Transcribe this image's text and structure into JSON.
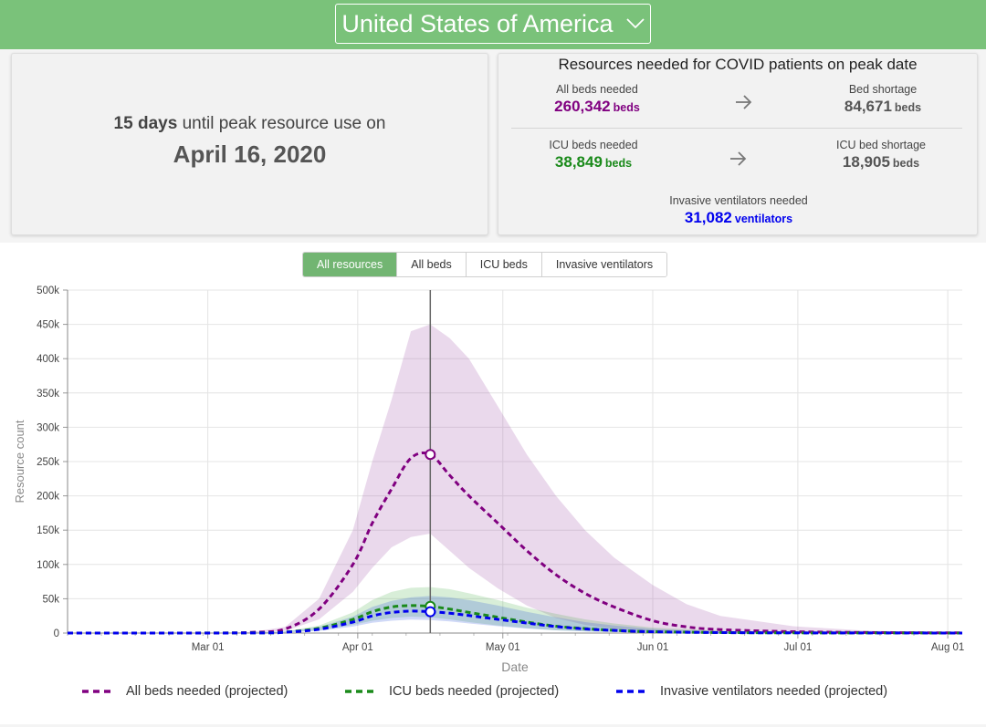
{
  "header": {
    "country": "United States of America"
  },
  "peak": {
    "days": "15 days",
    "until_text": "until peak resource use on",
    "date": "April 16, 2020"
  },
  "resources": {
    "title": "Resources needed for COVID patients on peak date",
    "all_beds": {
      "label": "All beds needed",
      "value": "260,342",
      "unit": "beds"
    },
    "bed_shortage": {
      "label": "Bed shortage",
      "value": "84,671",
      "unit": "beds"
    },
    "icu_beds": {
      "label": "ICU beds needed",
      "value": "38,849",
      "unit": "beds"
    },
    "icu_shortage": {
      "label": "ICU bed shortage",
      "value": "18,905",
      "unit": "beds"
    },
    "ventilators": {
      "label": "Invasive ventilators needed",
      "value": "31,082",
      "unit": "ventilators"
    }
  },
  "tabs": [
    "All resources",
    "All beds",
    "ICU beds",
    "Invasive ventilators"
  ],
  "colors": {
    "green": "#7ac27a",
    "purple": "#800080",
    "icu_green": "#1a8a1a",
    "blue": "#0000ee",
    "gray": "#666666"
  },
  "chart_data": {
    "type": "line",
    "xlabel": "Date",
    "ylabel": "Resource count",
    "ylim": [
      0,
      500000
    ],
    "yticks": [
      0,
      50000,
      100000,
      150000,
      200000,
      250000,
      300000,
      350000,
      400000,
      450000,
      500000
    ],
    "ytick_labels": [
      "0",
      "50k",
      "100k",
      "150k",
      "200k",
      "250k",
      "300k",
      "350k",
      "400k",
      "450k",
      "500k"
    ],
    "xlim": [
      "2020-02-01",
      "2020-08-04"
    ],
    "xticks": [
      "2020-03-01",
      "2020-04-01",
      "2020-05-01",
      "2020-06-01",
      "2020-07-01",
      "2020-08-01"
    ],
    "xtick_labels": [
      "Mar 01",
      "Apr 01",
      "May 01",
      "Jun 01",
      "Jul 01",
      "Aug 01"
    ],
    "peak_date": "2020-04-16",
    "grid": true,
    "legend_position": "bottom",
    "series": [
      {
        "name": "All beds needed (projected)",
        "color": "#800080",
        "x": [
          "2020-02-01",
          "2020-03-01",
          "2020-03-10",
          "2020-03-17",
          "2020-03-24",
          "2020-03-31",
          "2020-04-04",
          "2020-04-08",
          "2020-04-12",
          "2020-04-16",
          "2020-04-20",
          "2020-04-24",
          "2020-04-30",
          "2020-05-06",
          "2020-05-12",
          "2020-05-18",
          "2020-05-24",
          "2020-06-01",
          "2020-06-08",
          "2020-06-15",
          "2020-06-30",
          "2020-07-15",
          "2020-08-04"
        ],
        "values": [
          0,
          0,
          1000,
          6000,
          35000,
          100000,
          160000,
          210000,
          255000,
          260342,
          230000,
          200000,
          160000,
          120000,
          85000,
          58000,
          38000,
          18000,
          9000,
          5000,
          2000,
          800,
          200
        ],
        "lower": [
          0,
          0,
          500,
          3000,
          20000,
          60000,
          95000,
          125000,
          140000,
          145000,
          120000,
          95000,
          65000,
          40000,
          22000,
          12000,
          6000,
          2500,
          1200,
          600,
          200,
          80,
          20
        ],
        "upper": [
          0,
          0,
          1500,
          9000,
          50000,
          150000,
          250000,
          340000,
          440000,
          450000,
          430000,
          400000,
          330000,
          260000,
          200000,
          150000,
          110000,
          70000,
          42000,
          25000,
          10000,
          3500,
          800
        ]
      },
      {
        "name": "ICU beds needed (projected)",
        "color": "#1a8a1a",
        "x": [
          "2020-02-01",
          "2020-03-10",
          "2020-03-17",
          "2020-03-24",
          "2020-03-31",
          "2020-04-04",
          "2020-04-08",
          "2020-04-12",
          "2020-04-16",
          "2020-04-20",
          "2020-04-24",
          "2020-04-30",
          "2020-05-06",
          "2020-05-12",
          "2020-05-18",
          "2020-05-24",
          "2020-06-01",
          "2020-06-15",
          "2020-07-01",
          "2020-08-04"
        ],
        "values": [
          0,
          200,
          1500,
          7000,
          20000,
          31000,
          38000,
          40000,
          38849,
          35000,
          30000,
          23000,
          16000,
          10000,
          6500,
          4000,
          2000,
          800,
          300,
          50
        ],
        "lower": [
          0,
          100,
          900,
          4000,
          12000,
          18000,
          22000,
          24000,
          23000,
          20000,
          16000,
          11000,
          7000,
          4000,
          2500,
          1500,
          700,
          250,
          80,
          10
        ],
        "upper": [
          0,
          300,
          2500,
          11000,
          30000,
          48000,
          60000,
          66000,
          67000,
          64000,
          58000,
          48000,
          37000,
          28000,
          20000,
          14000,
          8000,
          3000,
          1200,
          300
        ]
      },
      {
        "name": "Invasive ventilators needed (projected)",
        "color": "#0000ee",
        "x": [
          "2020-02-01",
          "2020-03-10",
          "2020-03-17",
          "2020-03-24",
          "2020-03-31",
          "2020-04-04",
          "2020-04-08",
          "2020-04-12",
          "2020-04-16",
          "2020-04-20",
          "2020-04-24",
          "2020-04-30",
          "2020-05-06",
          "2020-05-12",
          "2020-05-18",
          "2020-05-24",
          "2020-06-01",
          "2020-06-15",
          "2020-07-01",
          "2020-08-04"
        ],
        "values": [
          0,
          150,
          1200,
          5500,
          16000,
          25000,
          30000,
          32000,
          31082,
          29000,
          25500,
          20000,
          14500,
          9500,
          6000,
          3800,
          1800,
          700,
          250,
          40
        ],
        "lower": [
          0,
          80,
          700,
          3200,
          9500,
          15000,
          18000,
          19500,
          19000,
          17000,
          14000,
          10000,
          6500,
          4000,
          2400,
          1400,
          650,
          220,
          70,
          10
        ],
        "upper": [
          0,
          250,
          2000,
          9000,
          24000,
          38000,
          47000,
          52000,
          54000,
          52000,
          48000,
          40000,
          31000,
          23000,
          16000,
          11000,
          6000,
          2300,
          900,
          200
        ]
      }
    ]
  }
}
